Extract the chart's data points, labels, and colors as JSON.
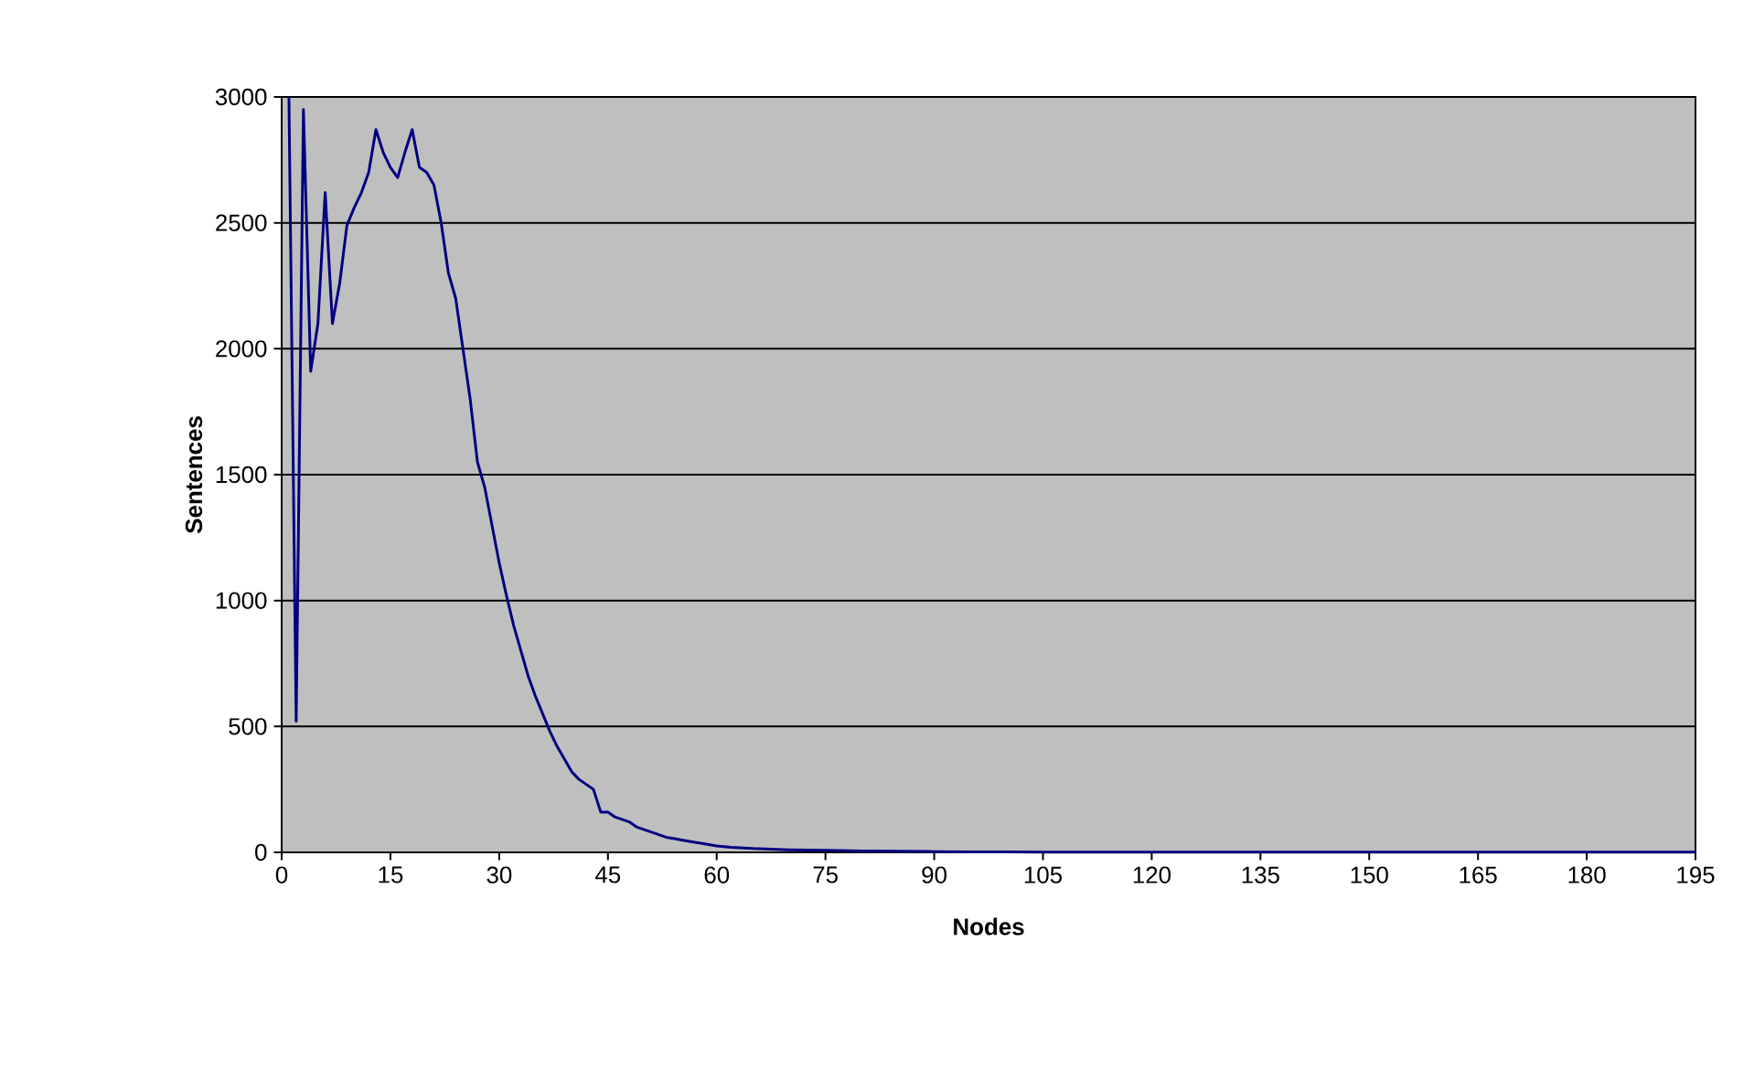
{
  "chart_data": {
    "type": "line",
    "xlabel": "Nodes",
    "ylabel": "Sentences",
    "x": [
      1,
      2,
      3,
      4,
      5,
      6,
      7,
      8,
      9,
      10,
      11,
      12,
      13,
      14,
      15,
      16,
      17,
      18,
      19,
      20,
      21,
      22,
      23,
      24,
      25,
      26,
      27,
      28,
      29,
      30,
      31,
      32,
      33,
      34,
      35,
      36,
      37,
      38,
      39,
      40,
      41,
      42,
      43,
      44,
      45,
      46,
      47,
      48,
      49,
      50,
      51,
      52,
      53,
      54,
      55,
      56,
      57,
      58,
      59,
      60,
      62,
      65,
      70,
      75,
      80,
      85,
      90,
      95,
      100,
      105,
      110,
      115,
      120,
      133,
      136,
      145,
      166,
      195
    ],
    "series": [
      {
        "color": "#000080",
        "values": [
          3000,
          520,
          2950,
          1910,
          2100,
          2620,
          2100,
          2260,
          2490,
          2560,
          2620,
          2700,
          2870,
          2780,
          2720,
          2680,
          2780,
          2870,
          2720,
          2700,
          2650,
          2500,
          2300,
          2200,
          2000,
          1800,
          1550,
          1450,
          1300,
          1150,
          1020,
          900,
          800,
          700,
          620,
          550,
          480,
          420,
          370,
          320,
          290,
          270,
          250,
          160,
          160,
          140,
          130,
          120,
          100,
          90,
          80,
          70,
          60,
          55,
          50,
          45,
          40,
          35,
          30,
          25,
          20,
          15,
          10,
          8,
          5,
          4,
          3,
          2,
          2,
          1,
          1,
          1,
          1,
          1,
          1,
          1,
          1,
          1
        ]
      }
    ],
    "xlim": [
      0,
      195
    ],
    "xticks": [
      0,
      15,
      30,
      45,
      60,
      75,
      90,
      105,
      120,
      135,
      150,
      165,
      180,
      195
    ],
    "ylim": [
      0,
      3000
    ],
    "yticks": [
      0,
      500,
      1000,
      1500,
      2000,
      2500,
      3000
    ],
    "grid": "y",
    "line_style": "solid"
  }
}
